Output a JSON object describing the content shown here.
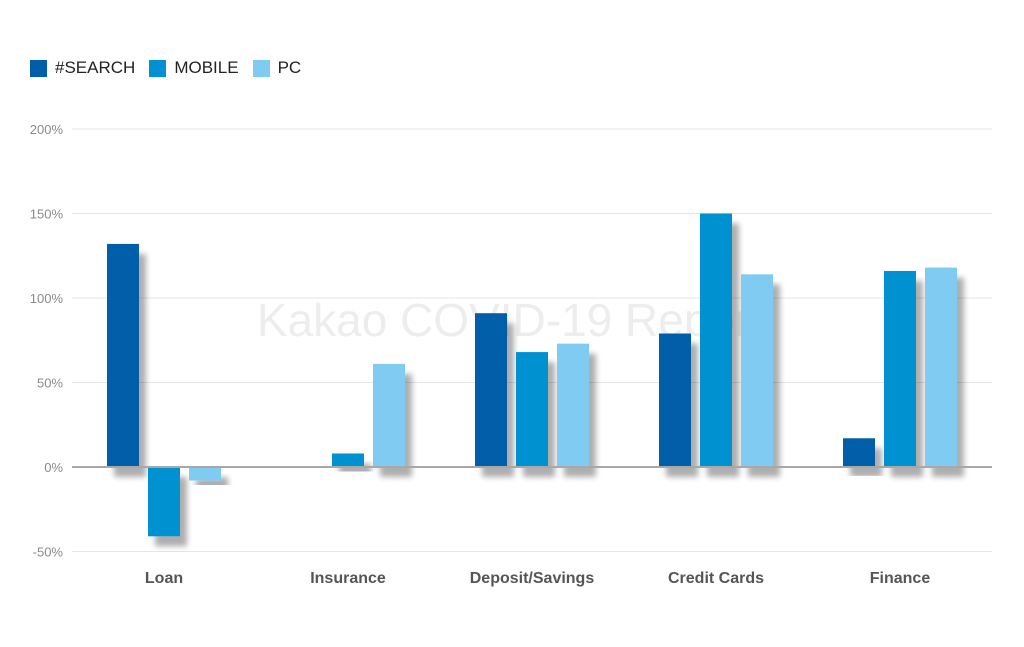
{
  "chart_data": {
    "type": "bar",
    "categories": [
      "Loan",
      "Insurance",
      "Deposit/Savings",
      "Credit Cards",
      "Finance"
    ],
    "series": [
      {
        "name": "#SEARCH",
        "color": "#005ea8",
        "values": [
          132,
          null,
          91,
          79,
          17
        ]
      },
      {
        "name": "MOBILE",
        "color": "#0091d0",
        "values": [
          -41,
          8,
          68,
          150,
          116
        ]
      },
      {
        "name": "PC",
        "color": "#7fcbf1",
        "values": [
          -8,
          61,
          73,
          114,
          118
        ]
      }
    ],
    "ylim": [
      -50,
      200
    ],
    "yticks": [
      {
        "value": 200,
        "label": "200%"
      },
      {
        "value": 150,
        "label": "150%"
      },
      {
        "value": 100,
        "label": "100%"
      },
      {
        "value": 50,
        "label": "50%"
      },
      {
        "value": 0,
        "label": "0%"
      },
      {
        "value": -50,
        "label": "-50%"
      }
    ],
    "legend_position": "top-left",
    "grid": true,
    "watermark": "Kakao COVID-19 Report"
  }
}
